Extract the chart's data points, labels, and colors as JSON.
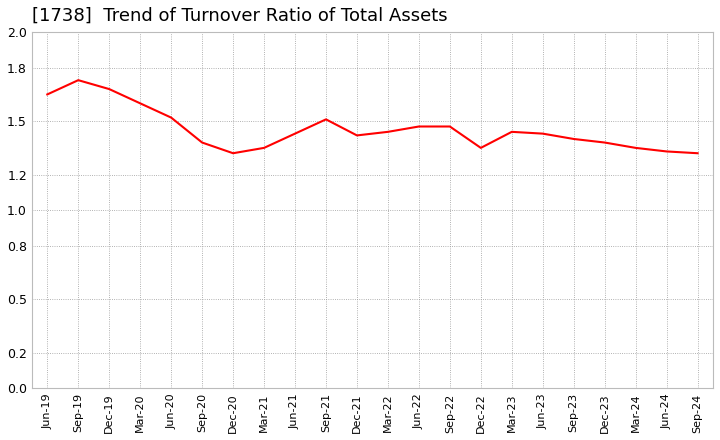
{
  "title": "[1738]  Trend of Turnover Ratio of Total Assets",
  "title_fontsize": 13,
  "line_color": "#ff0000",
  "line_width": 1.5,
  "background_color": "#ffffff",
  "grid_color": "#999999",
  "ylim": [
    0.0,
    2.0
  ],
  "yticks": [
    0.0,
    0.2,
    0.5,
    0.8,
    1.0,
    1.2,
    1.5,
    1.8,
    2.0
  ],
  "labels": [
    "Jun-19",
    "Sep-19",
    "Dec-19",
    "Mar-20",
    "Jun-20",
    "Sep-20",
    "Dec-20",
    "Mar-21",
    "Jun-21",
    "Sep-21",
    "Dec-21",
    "Mar-22",
    "Jun-22",
    "Sep-22",
    "Dec-22",
    "Mar-23",
    "Jun-23",
    "Sep-23",
    "Dec-23",
    "Mar-24",
    "Jun-24",
    "Sep-24"
  ],
  "values": [
    1.65,
    1.73,
    1.68,
    1.6,
    1.52,
    1.38,
    1.32,
    1.35,
    1.43,
    1.51,
    1.42,
    1.44,
    1.47,
    1.47,
    1.35,
    1.44,
    1.43,
    1.4,
    1.38,
    1.35,
    1.33,
    1.32
  ]
}
